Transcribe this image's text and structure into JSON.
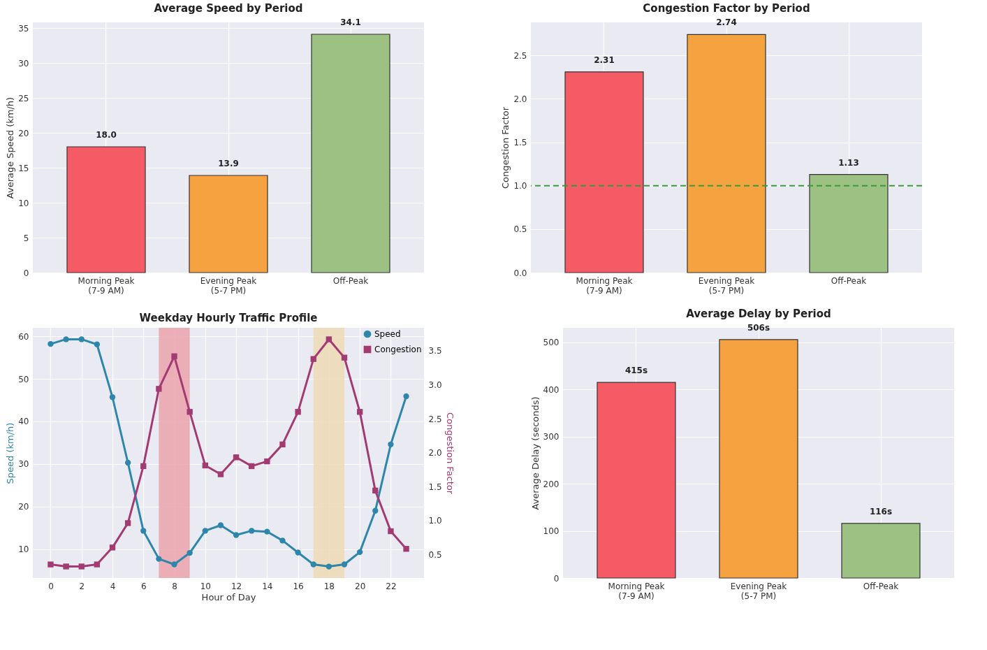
{
  "chart_data": [
    {
      "type": "bar",
      "title": "Average Speed by Period",
      "ylabel": "Average Speed (km/h)",
      "categories": [
        "Morning Peak\n(7-9 AM)",
        "Evening Peak\n(5-7 PM)",
        "Off-Peak"
      ],
      "values": [
        18.0,
        13.9,
        34.1
      ],
      "value_labels": [
        "18.0",
        "13.9",
        "34.1"
      ],
      "colors": [
        "#f45b65",
        "#f4a340",
        "#9dc183"
      ],
      "ylim": [
        0,
        35.8
      ],
      "yticks": [
        0,
        5,
        10,
        15,
        20,
        25,
        30,
        35
      ],
      "grid": true
    },
    {
      "type": "bar",
      "title": "Congestion Factor by Period",
      "ylabel": "Congestion Factor",
      "categories": [
        "Morning Peak\n(7-9 AM)",
        "Evening Peak\n(5-7 PM)",
        "Off-Peak"
      ],
      "values": [
        2.31,
        2.74,
        1.13
      ],
      "data_labels": true,
      "colors": [
        "#f45b65",
        "#f4a340",
        "#9dc183"
      ],
      "ylim": [
        0,
        2.88
      ],
      "yticks": [
        {
          "value": 0,
          "label": "0.0"
        },
        0.5,
        {
          "value": 1,
          "label": "1.0"
        },
        1.5,
        {
          "value": 2,
          "label": "2.0"
        },
        2.5
      ],
      "grid": true,
      "ref_lines": [
        {
          "axis": "y",
          "value": 1.0,
          "color": "#3a9a3a",
          "line_style": "dashed"
        }
      ]
    },
    {
      "type": "line",
      "title": "Weekday Hourly Traffic Profile",
      "xlabel": "Hour of Day",
      "ylabel": "Speed (km/h)",
      "y2label": "Congestion Factor",
      "x": [
        0,
        1,
        2,
        3,
        4,
        5,
        6,
        7,
        8,
        9,
        10,
        11,
        12,
        13,
        14,
        15,
        16,
        17,
        18,
        19,
        20,
        21,
        22,
        23
      ],
      "series": [
        {
          "name": "Speed",
          "color": "#2e86ab",
          "marker": "circle",
          "values": [
            58.2,
            59.3,
            59.3,
            58.1,
            45.7,
            30.3,
            14.3,
            7.7,
            6.4,
            9.1,
            14.3,
            15.6,
            13.3,
            14.3,
            14.1,
            12.0,
            9.2,
            6.4,
            5.9,
            6.4,
            9.3,
            19.0,
            34.6,
            45.9
          ]
        },
        {
          "name": "Congestion",
          "color": "#a23b72",
          "marker": "square",
          "axis": "y2",
          "values": [
            0.35,
            0.32,
            0.32,
            0.35,
            0.6,
            0.96,
            1.8,
            2.94,
            3.42,
            2.6,
            1.81,
            1.68,
            1.93,
            1.8,
            1.87,
            2.12,
            2.6,
            3.38,
            3.67,
            3.4,
            2.6,
            1.44,
            0.84,
            0.58
          ]
        }
      ],
      "bands": [
        {
          "axis": "x",
          "from": 7,
          "to": 9,
          "color": "#eba3ad"
        },
        {
          "axis": "x",
          "from": 17,
          "to": 19,
          "color": "#efd9b5"
        }
      ],
      "xlim": [
        -1.15,
        24.15
      ],
      "xticks": [
        0,
        2,
        4,
        6,
        8,
        10,
        12,
        14,
        16,
        18,
        20,
        22
      ],
      "ylim": [
        3.2,
        62.0
      ],
      "yticks": [
        10,
        20,
        30,
        40,
        50,
        60
      ],
      "y2lim": [
        0.15,
        3.84
      ],
      "y2ticks": [
        0.5,
        {
          "value": 1,
          "label": "1.0"
        },
        1.5,
        {
          "value": 2,
          "label": "2.0"
        },
        2.5,
        {
          "value": 3,
          "label": "3.0"
        },
        3.5
      ],
      "grid": true,
      "legend": "top right"
    },
    {
      "type": "bar",
      "title": "Average Delay by Period",
      "ylabel": "Average Delay (seconds)",
      "categories": [
        "Morning Peak\n(7-9 AM)",
        "Evening Peak\n(5-7 PM)",
        "Off-Peak"
      ],
      "values": [
        415,
        506,
        116
      ],
      "value_labels": [
        "415s",
        "506s",
        "116s"
      ],
      "colors": [
        "#f45b65",
        "#f4a340",
        "#9dc183"
      ],
      "ylim": [
        0,
        531
      ],
      "yticks": [
        0,
        100,
        200,
        300,
        400,
        500
      ],
      "grid": true
    }
  ]
}
